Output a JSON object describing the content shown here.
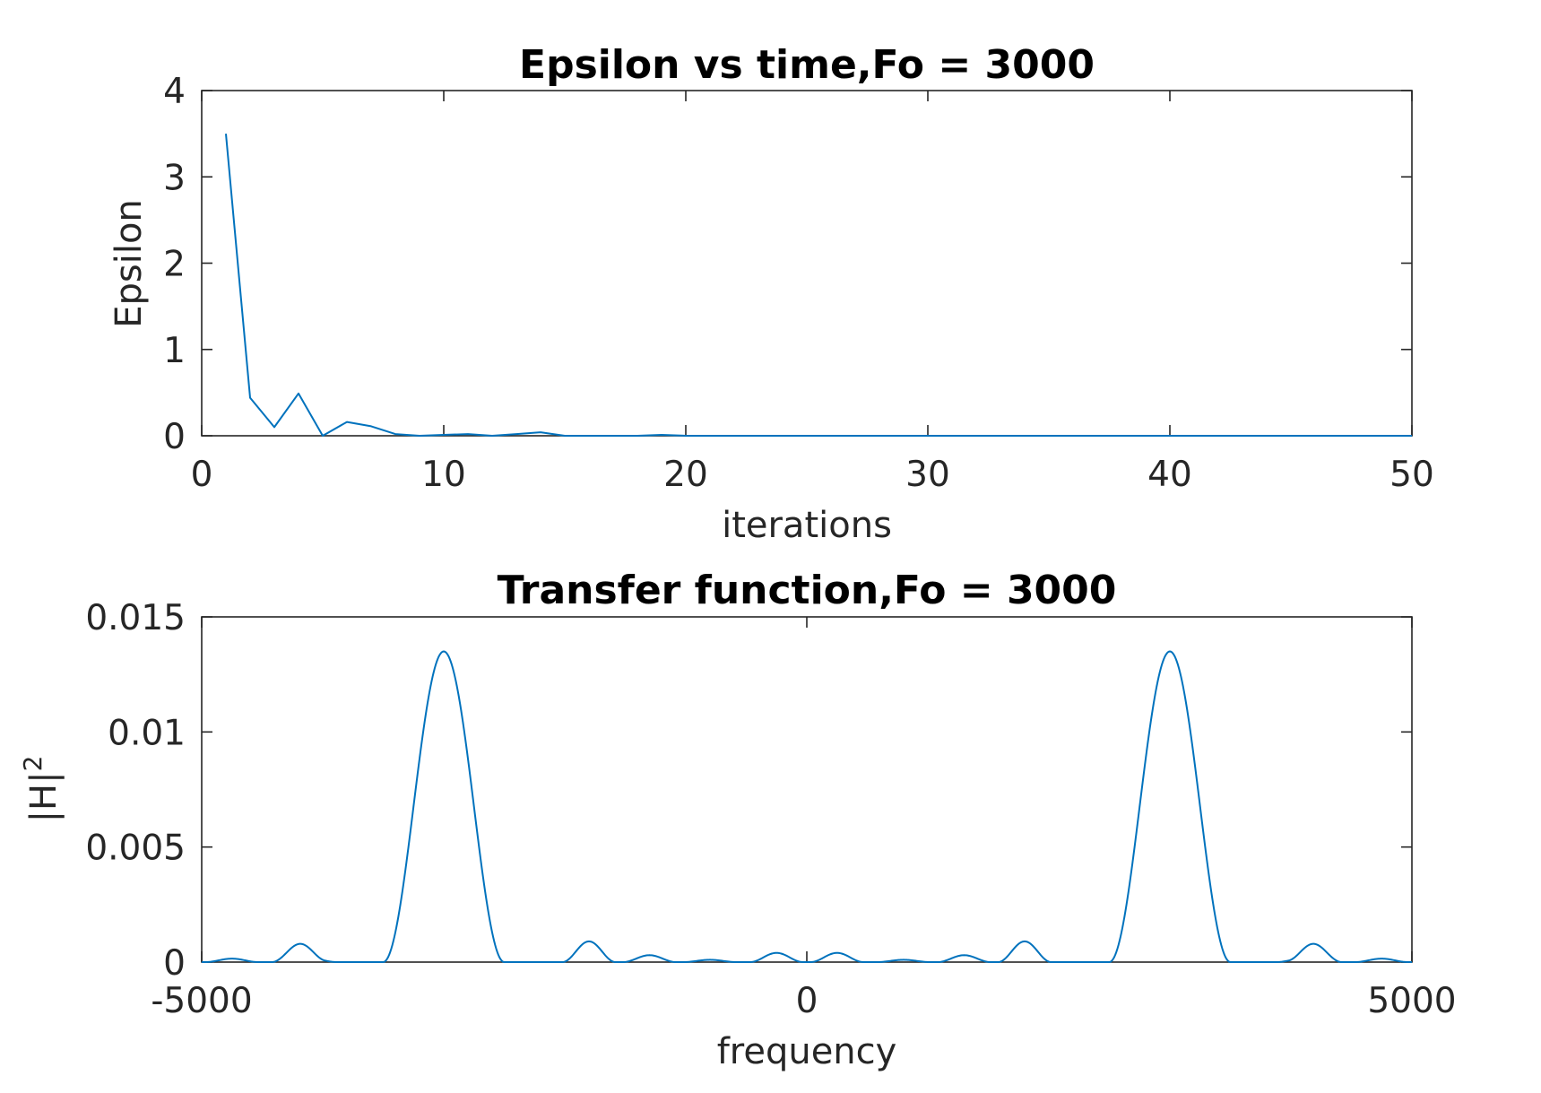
{
  "chart_data": [
    {
      "type": "line",
      "title": "Epsilon vs time,Fo = 3000",
      "xlabel": "iterations",
      "ylabel": "Epsilon",
      "xlim": [
        0,
        50
      ],
      "ylim": [
        0,
        4
      ],
      "xticks": [
        "0",
        "10",
        "20",
        "30",
        "40",
        "50"
      ],
      "yticks": [
        "0",
        "1",
        "2",
        "3",
        "4"
      ],
      "color": "#0072BD",
      "grid": false,
      "series": [
        {
          "x": [
            1,
            2,
            3,
            4,
            5,
            6,
            7,
            8,
            9,
            10,
            11,
            12,
            13,
            14,
            15,
            16,
            17,
            18,
            19,
            20,
            21,
            22,
            23,
            24,
            25,
            26,
            27,
            28,
            29,
            30,
            31,
            32,
            33,
            34,
            35,
            36,
            37,
            38,
            39,
            40,
            41,
            42,
            43,
            44,
            45,
            46,
            47,
            48,
            49,
            50
          ],
          "values": [
            3.5,
            0.44,
            0.1,
            0.49,
            0.0,
            0.16,
            0.11,
            0.02,
            0.0,
            0.01,
            0.02,
            0.0,
            0.02,
            0.04,
            0.0,
            0.0,
            0.0,
            0.0,
            0.01,
            0.0,
            0.0,
            0.0,
            0.0,
            0.0,
            0.0,
            0.0,
            0.0,
            0.0,
            0.0,
            0.0,
            0.0,
            0.0,
            0.0,
            0.0,
            0.0,
            0.0,
            0.0,
            0.0,
            0.0,
            0.0,
            0.0,
            0.0,
            0.0,
            0.0,
            0.0,
            0.0,
            0.0,
            0.0,
            0.0,
            0.0
          ]
        }
      ]
    },
    {
      "type": "line",
      "title": "Transfer function,Fo = 3000",
      "xlabel": "frequency",
      "ylabel": "|H|",
      "ylabel_superscript": "2",
      "xlim": [
        -5000,
        5000
      ],
      "ylim": [
        0,
        0.015
      ],
      "xticks": [
        "-5000",
        "0",
        "5000"
      ],
      "yticks": [
        "0",
        "0.005",
        "0.01",
        "0.015"
      ],
      "color": "#0072BD",
      "grid": false,
      "model": {
        "peak_frequency": 3000,
        "peak_value": 0.0135,
        "peak_halfwidth": 500,
        "sidelobes": [
          {
            "frequency": 4200,
            "value": 0.0007
          },
          {
            "frequency": 1800,
            "value": 0.0009
          },
          {
            "frequency": 4750,
            "value": 0.00015
          },
          {
            "frequency": 4100,
            "value": 0.00015
          },
          {
            "frequency": 1300,
            "value": 0.0003
          },
          {
            "frequency": 800,
            "value": 0.0001
          },
          {
            "frequency": 250,
            "value": 0.0003
          },
          {
            "frequency": -250,
            "value": 0.0001
          }
        ]
      }
    }
  ]
}
